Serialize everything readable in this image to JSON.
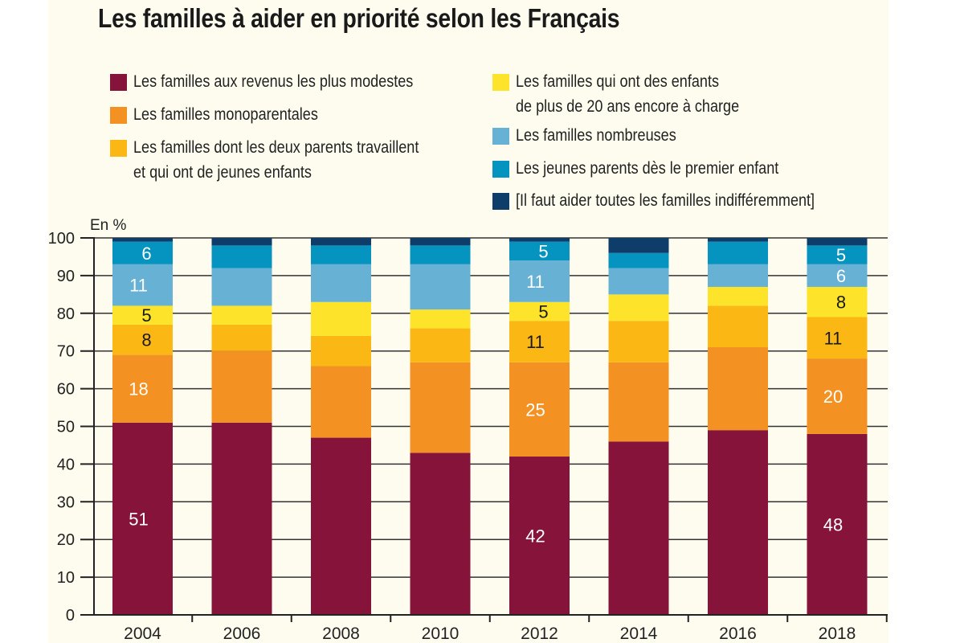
{
  "chart_data": {
    "type": "bar",
    "stacked": true,
    "title": "Les familles à aider en priorité selon les Français",
    "ylabel": "En %",
    "ylim": [
      0,
      100
    ],
    "yticks": [
      0,
      10,
      20,
      30,
      40,
      50,
      60,
      70,
      80,
      90,
      100
    ],
    "grid": true,
    "legend_placement": "top",
    "background": "#fefcef",
    "categories": [
      "2004",
      "2006",
      "2008",
      "2010",
      "2012",
      "2014",
      "2016",
      "2018"
    ],
    "series": [
      {
        "name": "Les familles aux revenus les plus modestes",
        "color": "#85133a",
        "values": [
          51,
          51,
          47,
          43,
          42,
          46,
          49,
          48
        ],
        "labels": [
          "51",
          null,
          null,
          null,
          "42",
          null,
          null,
          "48"
        ],
        "label_color": "#ffffff"
      },
      {
        "name": "Les familles monoparentales",
        "color": "#f39222",
        "values": [
          18,
          19,
          19,
          24,
          25,
          21,
          22,
          20
        ],
        "labels": [
          "18",
          null,
          null,
          null,
          "25",
          null,
          null,
          "20"
        ],
        "label_color": "#ffffff"
      },
      {
        "name": "Les familles dont les deux parents travaillent et qui ont de jeunes enfants",
        "legend_lines": [
          "Les familles dont les deux parents travaillent",
          "et qui ont de jeunes enfants"
        ],
        "color": "#fbb814",
        "values": [
          8,
          7,
          8,
          9,
          11,
          11,
          11,
          11
        ],
        "labels": [
          "8",
          null,
          null,
          null,
          "11",
          null,
          null,
          "11"
        ],
        "label_color": "#1a1a1a"
      },
      {
        "name": "Les familles qui ont des enfants de plus de 20 ans encore à charge",
        "legend_lines": [
          "Les familles qui ont des enfants",
          "de plus de 20 ans encore à charge"
        ],
        "color": "#fde42a",
        "values": [
          5,
          5,
          9,
          5,
          5,
          7,
          5,
          8
        ],
        "labels": [
          "5",
          null,
          null,
          null,
          "5",
          null,
          null,
          "8"
        ],
        "label_color": "#1a1a1a"
      },
      {
        "name": "Les familles nombreuses",
        "color": "#67b1d4",
        "values": [
          11,
          10,
          10,
          12,
          11,
          7,
          6,
          6
        ],
        "labels": [
          "11",
          null,
          null,
          null,
          "11",
          null,
          null,
          "6"
        ],
        "label_color": "#ffffff"
      },
      {
        "name": "Les jeunes parents dès le premier enfant",
        "color": "#0594bf",
        "values": [
          6,
          6,
          5,
          5,
          5,
          4,
          6,
          5
        ],
        "labels": [
          "6",
          null,
          null,
          null,
          "5",
          null,
          null,
          "5"
        ],
        "label_color": "#ffffff"
      },
      {
        "name": "[Il faut aider toutes les familles indifféremment]",
        "color": "#0d3d68",
        "values": [
          1,
          2,
          2,
          2,
          1,
          4,
          1,
          2
        ],
        "labels": [
          null,
          null,
          null,
          null,
          null,
          null,
          null,
          null
        ],
        "label_color": "#ffffff"
      }
    ]
  }
}
